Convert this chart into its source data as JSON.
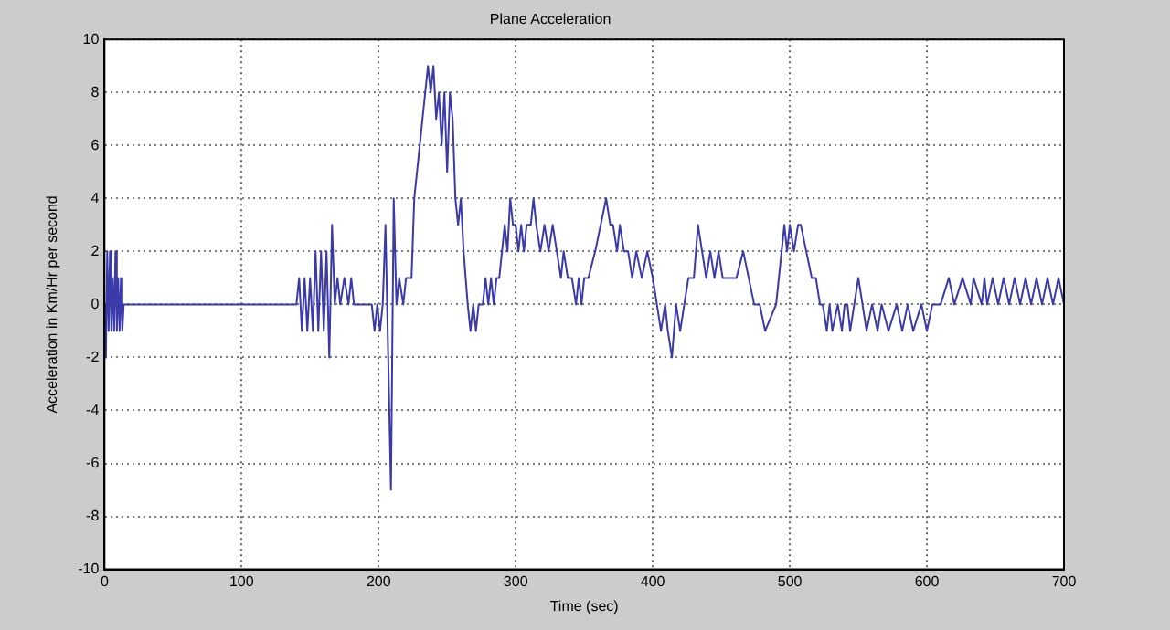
{
  "chart_data": {
    "type": "line",
    "title": "Plane Acceleration",
    "xlabel": "Time (sec)",
    "ylabel": "Acceleration in Km/Hr per second",
    "series": [
      {
        "color": "#3a3aa8",
        "x": [
          0,
          1,
          2,
          3,
          4,
          5,
          6,
          7,
          8,
          9,
          10,
          11,
          12,
          13,
          14,
          140,
          142,
          144,
          146,
          148,
          150,
          152,
          154,
          156,
          158,
          160,
          162,
          164,
          166,
          168,
          170,
          172,
          175,
          178,
          180,
          182,
          195,
          197,
          199,
          201,
          203,
          205,
          207,
          209,
          211,
          213,
          215,
          218,
          220,
          224,
          226,
          228,
          230,
          232,
          234,
          236,
          238,
          240,
          242,
          244,
          246,
          248,
          250,
          252,
          254,
          256,
          258,
          260,
          262,
          265,
          267,
          269,
          271,
          273,
          276,
          278,
          280,
          282,
          284,
          286,
          288,
          290,
          292,
          294,
          296,
          298,
          300,
          302,
          304,
          306,
          308,
          311,
          313,
          315,
          318,
          321,
          324,
          327,
          330,
          333,
          335,
          338,
          341,
          344,
          346,
          348,
          350,
          353,
          358,
          362,
          366,
          369,
          371,
          374,
          376,
          379,
          382,
          385,
          388,
          392,
          396,
          400,
          403,
          406,
          409,
          411,
          414,
          417,
          420,
          423,
          426,
          430,
          433,
          436,
          439,
          442,
          445,
          448,
          451,
          455,
          461,
          466,
          470,
          474,
          478,
          482,
          490,
          494,
          496,
          498,
          500,
          503,
          506,
          508,
          512,
          516,
          519,
          522,
          524,
          527,
          529,
          531,
          535,
          538,
          540,
          542,
          544,
          547,
          550,
          553,
          556,
          560,
          564,
          567,
          572,
          578,
          582,
          586,
          590,
          596,
          600,
          604,
          610,
          616,
          620,
          626,
          632,
          634,
          640,
          642,
          644,
          648,
          652,
          656,
          660,
          664,
          668,
          672,
          676,
          680,
          684,
          688,
          692,
          696,
          700
        ],
        "values": [
          0,
          -2,
          2,
          -1,
          2,
          -1,
          1,
          -1,
          2,
          -1,
          1,
          -1,
          1,
          -1,
          0,
          0,
          1,
          -1,
          1,
          -1,
          1,
          -1,
          2,
          -1,
          2,
          -1,
          2,
          -2,
          3,
          0,
          1,
          0,
          1,
          0,
          1,
          0,
          0,
          -1,
          0,
          -1,
          0,
          3,
          -2,
          -7,
          4,
          0,
          1,
          0,
          1,
          1,
          4,
          5,
          6,
          7,
          8,
          9,
          8,
          9,
          7,
          8,
          6,
          8,
          5,
          8,
          7,
          4,
          3,
          4,
          2,
          0,
          -1,
          0,
          -1,
          0,
          0,
          1,
          0,
          1,
          0,
          1,
          1,
          2,
          3,
          2,
          4,
          3,
          3,
          2,
          3,
          2,
          3,
          3,
          4,
          3,
          2,
          3,
          2,
          3,
          2,
          1,
          2,
          1,
          1,
          0,
          1,
          0,
          1,
          1,
          2,
          3,
          4,
          3,
          3,
          2,
          3,
          2,
          2,
          1,
          2,
          1,
          2,
          1,
          0,
          -1,
          0,
          -1,
          -2,
          0,
          -1,
          0,
          1,
          1,
          3,
          2,
          1,
          2,
          1,
          2,
          1,
          1,
          1,
          2,
          1,
          0,
          0,
          -1,
          0,
          2,
          3,
          2,
          3,
          2,
          3,
          3,
          2,
          1,
          1,
          0,
          0,
          -1,
          0,
          -1,
          0,
          -1,
          0,
          0,
          -1,
          0,
          1,
          0,
          -1,
          0,
          -1,
          0,
          -1,
          0,
          -1,
          0,
          -1,
          0,
          -1,
          0,
          0,
          1,
          0,
          1,
          0,
          1,
          0,
          1,
          0,
          1,
          0,
          1,
          0,
          1,
          0,
          1,
          0,
          1,
          0,
          1,
          0,
          1,
          0
        ]
      }
    ],
    "xlim": [
      0,
      700
    ],
    "xticks": [
      0,
      100,
      200,
      300,
      400,
      500,
      600,
      700
    ],
    "ylim": [
      -10,
      10
    ],
    "yticks": [
      -10,
      -8,
      -6,
      -4,
      -2,
      0,
      2,
      4,
      6,
      8,
      10
    ],
    "grid": true,
    "legend": false,
    "marker": "none",
    "line_style": "solid"
  }
}
